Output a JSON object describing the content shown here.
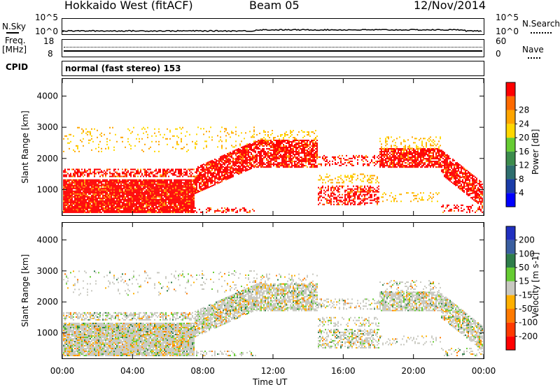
{
  "header": {
    "title": "Hokkaido West (fitACF)",
    "beam": "Beam 05",
    "date": "12/Nov/2014"
  },
  "nsky_panel": {
    "label": "N.Sky",
    "right_label": "N.Search",
    "ticks_left": [
      "10^5",
      "10^0"
    ],
    "ticks_right": [
      "10^5",
      "10^0"
    ]
  },
  "freq_panel": {
    "label_line1": "Freq.",
    "label_line2": "[MHz]",
    "ticks_left": [
      "18",
      "8"
    ],
    "right_label": "Nave",
    "ticks_right": [
      "60",
      "0"
    ]
  },
  "cpid_panel": {
    "label": "CPID",
    "mode_text": "normal (fast stereo) 153"
  },
  "chart_data": [
    {
      "type": "heatmap",
      "title": "",
      "ylabel": "Slant Range [km]",
      "xlabel": "",
      "ylim": [
        180,
        4550
      ],
      "yticks": [
        "1000",
        "2000",
        "3000",
        "4000"
      ],
      "colorbar": {
        "label": "Power [dB]",
        "ticks": [
          "4",
          "8",
          "12",
          "16",
          "20",
          "24",
          "28"
        ],
        "colors": [
          "#0000ff",
          "#1a3ca8",
          "#2e6e6e",
          "#3c8c4c",
          "#66cc33",
          "#ffd700",
          "#ffa500",
          "#ff6a00",
          "#ff0000"
        ]
      }
    },
    {
      "type": "heatmap",
      "title": "",
      "ylabel": "Slant Range [km]",
      "xlabel": "Time UT",
      "ylim": [
        180,
        4550
      ],
      "yticks": [
        "1000",
        "2000",
        "3000",
        "4000"
      ],
      "xticks": [
        "00:00",
        "04:00",
        "08:00",
        "12:00",
        "16:00",
        "20:00",
        "00:00"
      ],
      "colorbar": {
        "label": "Velocity [m s-1]",
        "ticks": [
          "200",
          "100",
          "50",
          "15",
          "-15",
          "-50",
          "-100",
          "-200"
        ],
        "colors": [
          "#2030c0",
          "#3a5fa0",
          "#2e7d4a",
          "#66cc33",
          "#c8c8c0",
          "#ffb000",
          "#ff7a00",
          "#ff3a00",
          "#ff0000"
        ]
      }
    }
  ]
}
